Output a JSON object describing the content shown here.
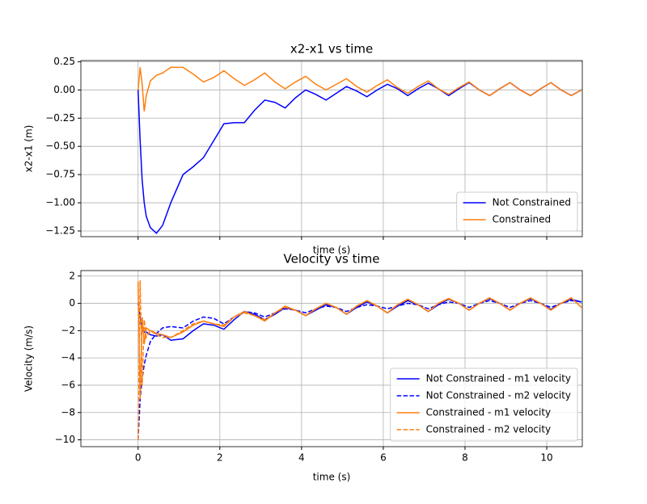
{
  "chart_data": [
    {
      "type": "line",
      "title": "x2-x1 vs time",
      "xlabel": "time (s)",
      "ylabel": "x2-x1 (m)",
      "x": [
        0,
        0.05,
        0.1,
        0.15,
        0.2,
        0.3,
        0.45,
        0.6,
        0.8,
        1.1,
        1.35,
        1.6,
        1.85,
        2.1,
        2.35,
        2.6,
        2.85,
        3.1,
        3.35,
        3.6,
        3.85,
        4.1,
        4.35,
        4.6,
        4.85,
        5.1,
        5.35,
        5.6,
        5.85,
        6.1,
        6.35,
        6.6,
        6.85,
        7.1,
        7.35,
        7.6,
        7.85,
        8.1,
        8.35,
        8.6,
        8.85,
        9.1,
        9.35,
        9.6,
        9.85,
        10.1,
        10.35,
        10.6,
        10.85
      ],
      "series": [
        {
          "name": "Not Constrained",
          "color": "#0000ff",
          "linestyle": "solid",
          "values": [
            0,
            -0.45,
            -0.8,
            -1.0,
            -1.12,
            -1.22,
            -1.27,
            -1.2,
            -1.0,
            -0.75,
            -0.68,
            -0.6,
            -0.45,
            -0.3,
            -0.29,
            -0.29,
            -0.18,
            -0.09,
            -0.11,
            -0.16,
            -0.07,
            0.0,
            -0.04,
            -0.09,
            -0.03,
            0.03,
            -0.01,
            -0.06,
            0.0,
            0.05,
            0.01,
            -0.05,
            0.01,
            0.06,
            0.01,
            -0.05,
            0.01,
            0.065,
            0.0,
            -0.05,
            0.01,
            0.065,
            0.0,
            -0.05,
            0.01,
            0.065,
            0.0,
            -0.05,
            0.0
          ]
        },
        {
          "name": "Constrained",
          "color": "#ff7f0e",
          "linestyle": "solid",
          "values": [
            0,
            0.2,
            0.05,
            -0.19,
            -0.05,
            0.08,
            0.13,
            0.15,
            0.2,
            0.2,
            0.14,
            0.07,
            0.11,
            0.17,
            0.1,
            0.04,
            0.09,
            0.15,
            0.07,
            0.01,
            0.07,
            0.12,
            0.05,
            0.0,
            0.05,
            0.1,
            0.03,
            -0.02,
            0.04,
            0.09,
            0.02,
            -0.03,
            0.03,
            0.08,
            0.01,
            -0.04,
            0.02,
            0.07,
            0.0,
            -0.05,
            0.01,
            0.065,
            0.0,
            -0.05,
            0.01,
            0.065,
            0.0,
            -0.05,
            0.0
          ]
        }
      ],
      "xlim": [
        -1.4,
        10.87
      ],
      "ylim": [
        -1.3,
        0.26
      ],
      "yticks": [
        {
          "value": 0.25,
          "label": "0.25"
        },
        {
          "value": 0,
          "label": "0.00"
        },
        {
          "value": -0.25,
          "label": "−0.25"
        },
        {
          "value": -0.5,
          "label": "−0.50"
        },
        {
          "value": -0.75,
          "label": "−0.75"
        },
        {
          "value": -1.0,
          "label": "−1.00"
        },
        {
          "value": -1.25,
          "label": "−1.25"
        }
      ],
      "grid": true,
      "legend": "lower right"
    },
    {
      "type": "line",
      "title": "Velocity vs time",
      "xlabel": "time (s)",
      "ylabel": "Velocity (m/s)",
      "x": [
        0,
        0.05,
        0.1,
        0.15,
        0.2,
        0.3,
        0.45,
        0.6,
        0.8,
        1.1,
        1.35,
        1.6,
        1.85,
        2.1,
        2.35,
        2.6,
        2.85,
        3.1,
        3.35,
        3.6,
        3.85,
        4.1,
        4.35,
        4.6,
        4.85,
        5.1,
        5.35,
        5.6,
        5.85,
        6.1,
        6.35,
        6.6,
        6.85,
        7.1,
        7.35,
        7.6,
        7.85,
        8.1,
        8.35,
        8.6,
        8.85,
        9.1,
        9.35,
        9.6,
        9.85,
        10.1,
        10.35,
        10.6,
        10.85
      ],
      "series": [
        {
          "name": "Not Constrained - m1 velocity",
          "color": "#0000ff",
          "linestyle": "solid",
          "values": [
            0,
            -1,
            -2,
            -2.1,
            -2.1,
            -2.3,
            -2.4,
            -2.3,
            -2.7,
            -2.6,
            -2.0,
            -1.5,
            -1.6,
            -1.9,
            -1.2,
            -0.6,
            -0.8,
            -1.2,
            -0.8,
            -0.3,
            -0.5,
            -0.9,
            -0.5,
            -0.1,
            -0.3,
            -0.8,
            -0.3,
            0.1,
            -0.2,
            -0.7,
            -0.2,
            0.2,
            -0.1,
            -0.6,
            -0.1,
            0.3,
            0.0,
            -0.5,
            0.0,
            0.35,
            0.0,
            -0.5,
            0.0,
            0.35,
            0.0,
            -0.45,
            0.0,
            0.3,
            0.1
          ]
        },
        {
          "name": "Not Constrained - m2 velocity",
          "color": "#0000ff",
          "linestyle": "dashed",
          "values": [
            -10,
            -7,
            -5.5,
            -4.5,
            -3.8,
            -2.8,
            -2.2,
            -1.8,
            -1.7,
            -1.8,
            -1.3,
            -1.0,
            -1.1,
            -1.5,
            -1.0,
            -0.6,
            -0.7,
            -1.0,
            -0.7,
            -0.4,
            -0.5,
            -0.7,
            -0.4,
            -0.2,
            -0.3,
            -0.6,
            -0.3,
            -0.1,
            -0.2,
            -0.4,
            -0.2,
            0.0,
            -0.1,
            -0.4,
            -0.1,
            0.1,
            0.0,
            -0.3,
            0.0,
            0.2,
            0.0,
            -0.3,
            0.0,
            0.2,
            0.0,
            -0.3,
            0.0,
            0.2,
            0.1
          ]
        },
        {
          "name": "Constrained - m1 velocity",
          "color": "#ff7f0e",
          "linestyle": "solid",
          "values": [
            1.6,
            -7,
            -1,
            -3,
            -1.8,
            -2.0,
            -2.2,
            -2.3,
            -2.5,
            -2.1,
            -1.6,
            -1.3,
            -1.5,
            -1.7,
            -1.0,
            -0.6,
            -0.9,
            -1.3,
            -0.7,
            -0.2,
            -0.5,
            -0.9,
            -0.4,
            0.0,
            -0.3,
            -0.8,
            -0.2,
            0.2,
            -0.2,
            -0.7,
            -0.1,
            0.3,
            -0.1,
            -0.6,
            0.0,
            0.35,
            0.0,
            -0.5,
            0.0,
            0.4,
            0.0,
            -0.5,
            0.0,
            0.4,
            0.0,
            -0.5,
            0.0,
            0.4,
            -0.3
          ]
        },
        {
          "name": "Constrained - m2 velocity",
          "color": "#ff7f0e",
          "linestyle": "dashed",
          "values": [
            -10,
            1.7,
            -6,
            -1.2,
            -2.5,
            -2.0,
            -2.3,
            -2.5,
            -2.5,
            -2.0,
            -1.5,
            -1.3,
            -1.5,
            -1.6,
            -1.0,
            -0.7,
            -0.9,
            -1.2,
            -0.7,
            -0.3,
            -0.5,
            -0.9,
            -0.4,
            0.0,
            -0.3,
            -0.8,
            -0.2,
            0.2,
            -0.2,
            -0.7,
            -0.1,
            0.3,
            -0.1,
            -0.6,
            0.0,
            0.35,
            0.0,
            -0.5,
            0.0,
            0.4,
            0.0,
            -0.5,
            0.0,
            0.4,
            0.0,
            -0.5,
            0.0,
            0.4,
            -0.3
          ]
        }
      ],
      "xlim": [
        -1.4,
        10.87
      ],
      "ylim": [
        -10.5,
        2.4
      ],
      "xticks": [
        0,
        2,
        4,
        6,
        8,
        10
      ],
      "yticks": [
        2,
        0,
        {
          "value": -2,
          "label": "−2"
        },
        {
          "value": -4,
          "label": "−4"
        },
        {
          "value": -6,
          "label": "−6"
        },
        {
          "value": -8,
          "label": "−8"
        },
        {
          "value": -10,
          "label": "−10"
        }
      ],
      "grid": true,
      "legend": "lower right"
    }
  ]
}
